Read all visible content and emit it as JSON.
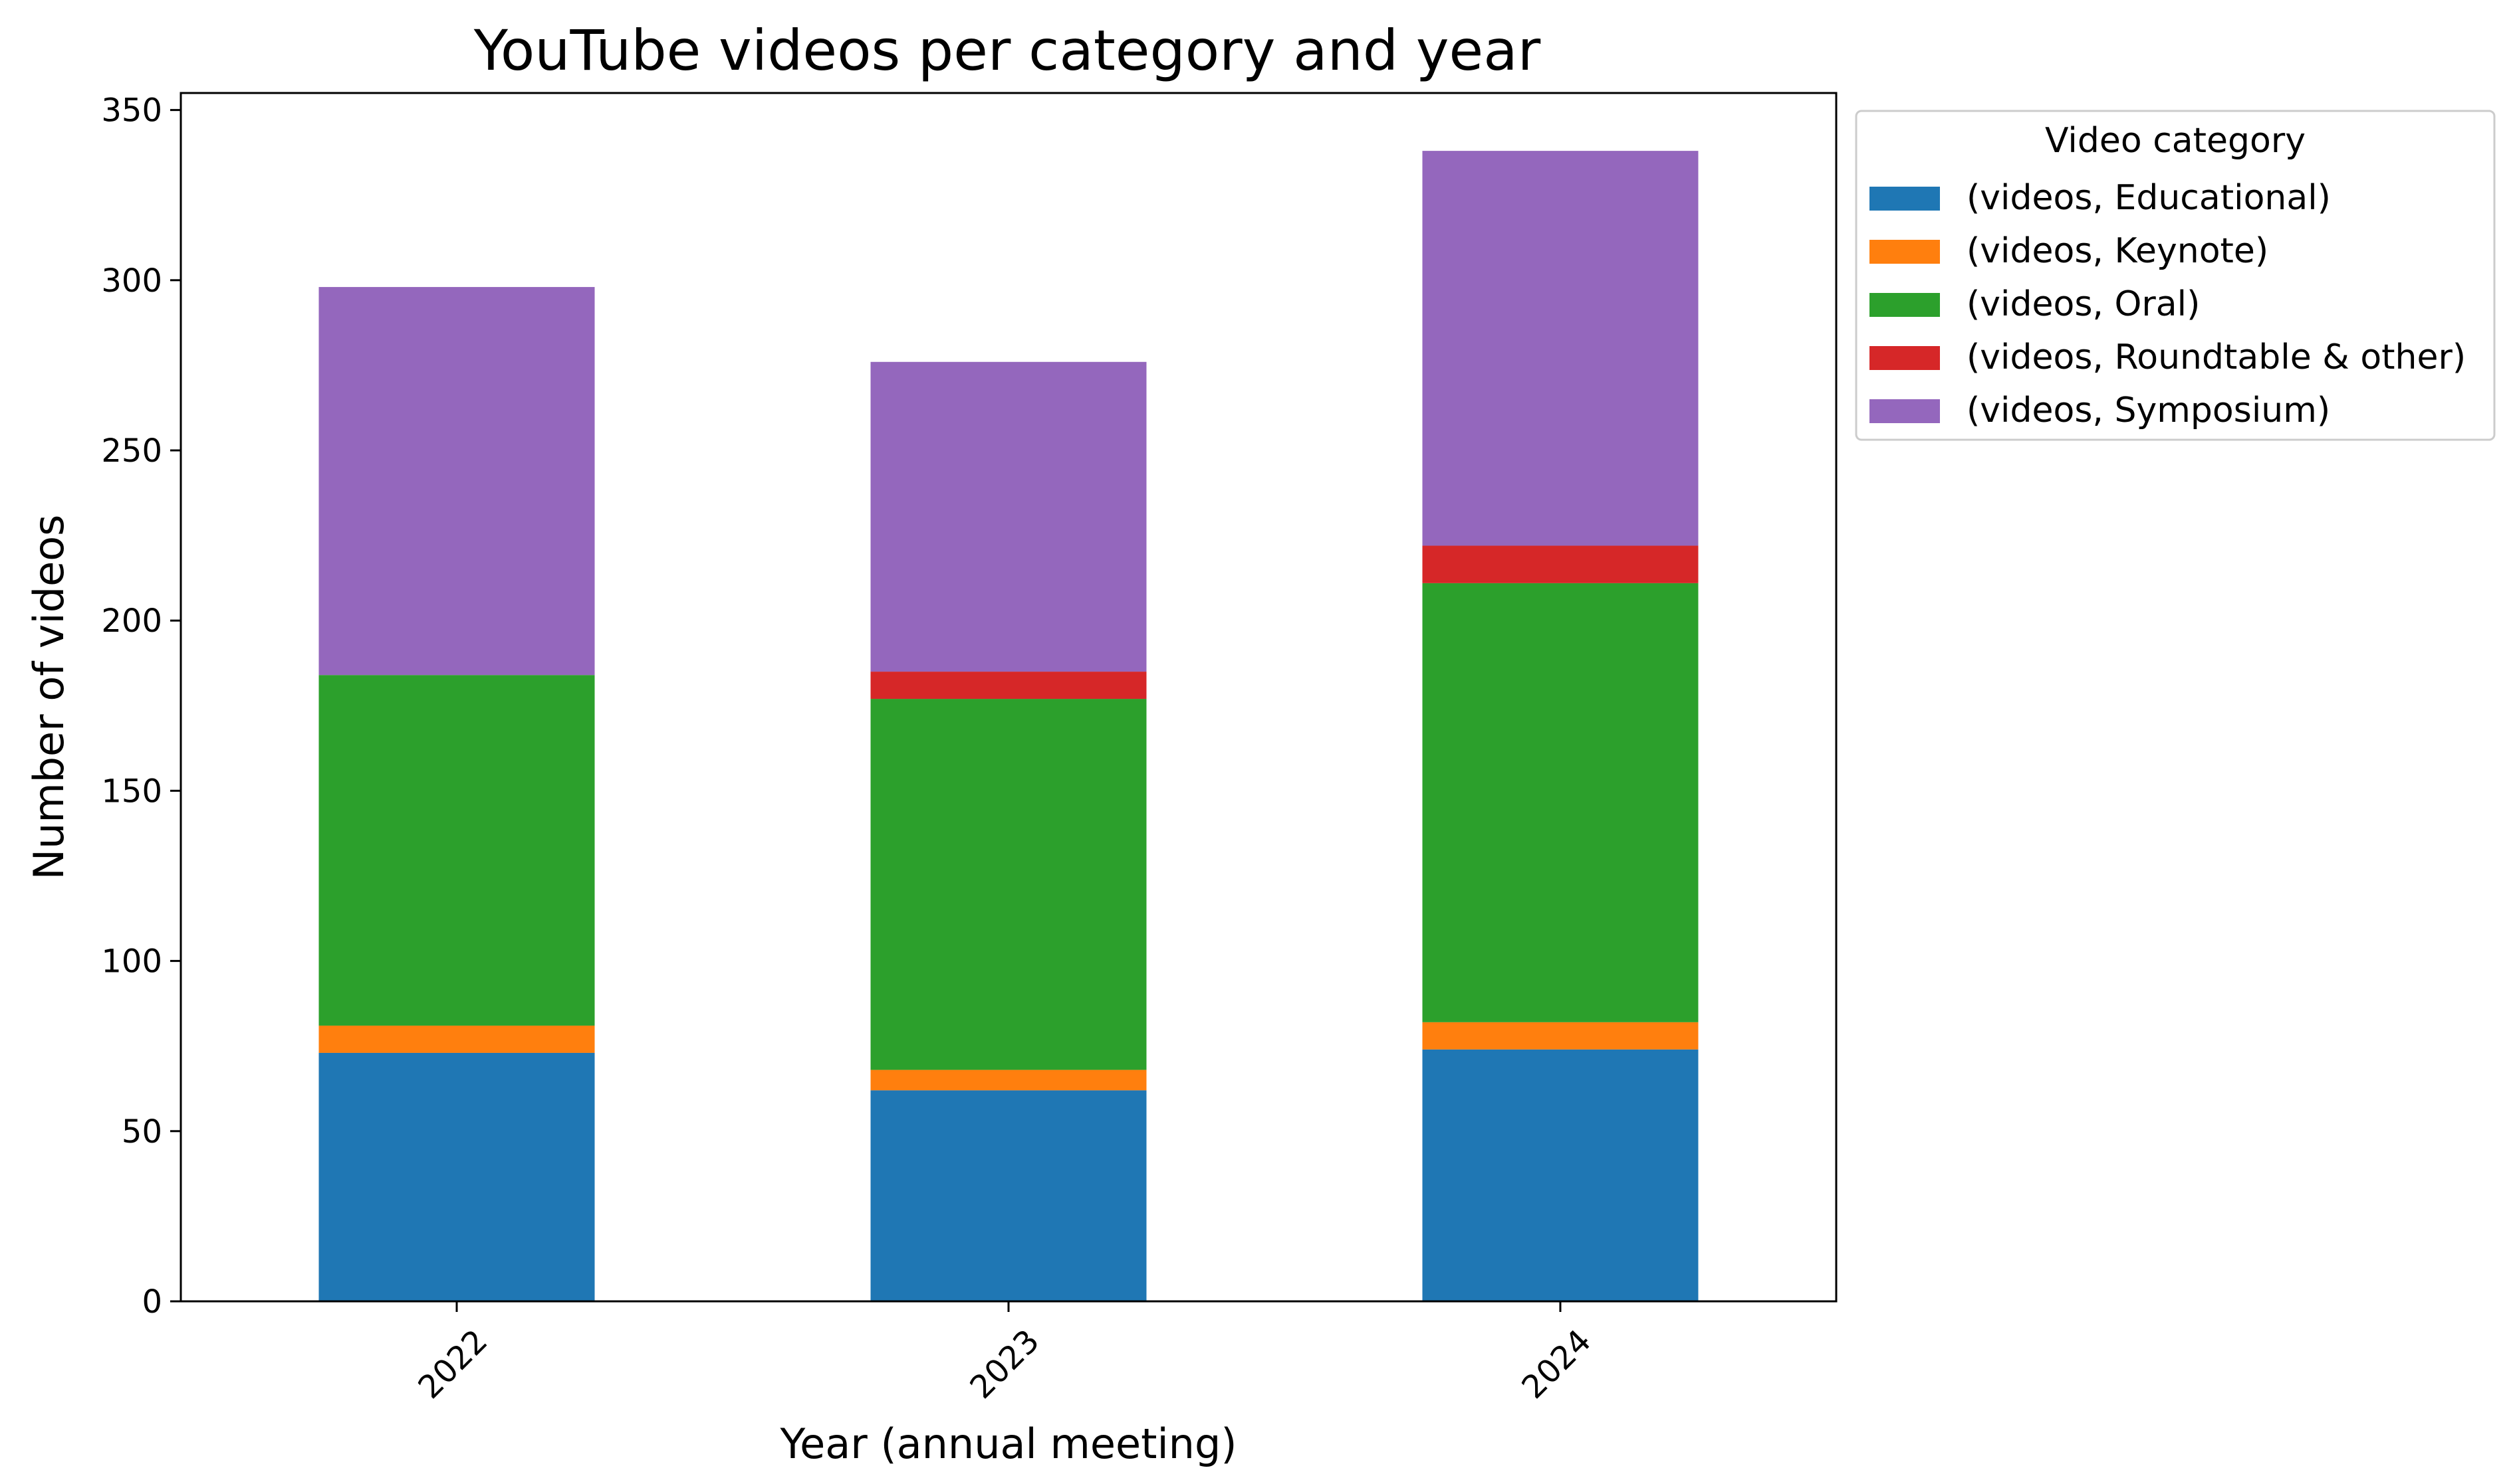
{
  "chart_data": {
    "type": "bar",
    "stacked": true,
    "title": "YouTube videos per category and year",
    "xlabel": "Year (annual meeting)",
    "ylabel": "Number of videos",
    "categories": [
      "2022",
      "2023",
      "2024"
    ],
    "ylim": [
      0,
      355
    ],
    "yticks": [
      0,
      50,
      100,
      150,
      200,
      250,
      300,
      350
    ],
    "grid": false,
    "legend": {
      "title": "Video category",
      "placement": "outside-top-right"
    },
    "series": [
      {
        "name": "(videos, Educational)",
        "color": "#1f77b4",
        "values": [
          73,
          62,
          74
        ]
      },
      {
        "name": "(videos, Keynote)",
        "color": "#ff7f0e",
        "values": [
          8,
          6,
          8
        ]
      },
      {
        "name": "(videos, Oral)",
        "color": "#2ca02c",
        "values": [
          103,
          109,
          129
        ]
      },
      {
        "name": "(videos, Roundtable & other)",
        "color": "#d62728",
        "values": [
          0,
          8,
          11
        ]
      },
      {
        "name": "(videos, Symposium)",
        "color": "#9467bd",
        "values": [
          114,
          91,
          116
        ]
      }
    ]
  }
}
